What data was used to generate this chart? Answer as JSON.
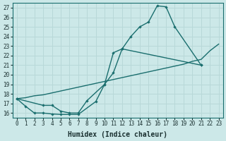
{
  "bg_color": "#cce8e8",
  "line_color": "#1a6e6e",
  "grid_color": "#b8d8d8",
  "xlabel": "Humidex (Indice chaleur)",
  "xticks": [
    0,
    1,
    2,
    3,
    4,
    5,
    6,
    7,
    8,
    9,
    10,
    11,
    12,
    13,
    14,
    15,
    16,
    17,
    18,
    19,
    20,
    21,
    22,
    23
  ],
  "yticks": [
    16,
    17,
    18,
    19,
    20,
    21,
    22,
    23,
    24,
    25,
    26,
    27
  ],
  "xlim": [
    -0.5,
    23.5
  ],
  "ylim": [
    15.5,
    27.5
  ],
  "line1_x": [
    0,
    1,
    2,
    3,
    4,
    5,
    6,
    7,
    9,
    10,
    11,
    12,
    13,
    14,
    15,
    16,
    17,
    18,
    21
  ],
  "line1_y": [
    17.5,
    16.7,
    16.0,
    16.0,
    15.9,
    15.85,
    15.85,
    15.85,
    17.2,
    19.0,
    22.3,
    22.7,
    24.0,
    25.0,
    25.5,
    27.2,
    27.1,
    25.0,
    21.0
  ],
  "line2_x": [
    0,
    3,
    4,
    5,
    6,
    7,
    8,
    10,
    11,
    12,
    21
  ],
  "line2_y": [
    17.5,
    16.8,
    16.8,
    16.2,
    16.0,
    16.0,
    17.3,
    19.0,
    20.2,
    22.7,
    21.0
  ],
  "line3_x": [
    0,
    1,
    2,
    3,
    4,
    5,
    6,
    7,
    8,
    9,
    10,
    11,
    12,
    13,
    14,
    15,
    16,
    17,
    18,
    19,
    20,
    21,
    22,
    23
  ],
  "line3_y": [
    17.5,
    17.6,
    17.8,
    17.9,
    18.1,
    18.3,
    18.5,
    18.7,
    18.9,
    19.1,
    19.3,
    19.5,
    19.7,
    19.9,
    20.1,
    20.3,
    20.5,
    20.7,
    20.9,
    21.1,
    21.4,
    21.6,
    22.5,
    23.2
  ]
}
